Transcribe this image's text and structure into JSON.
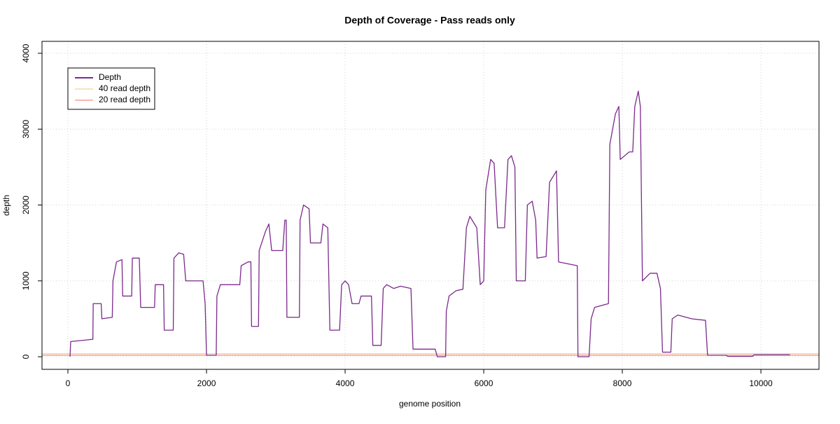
{
  "chart_data": {
    "type": "line",
    "title": "Depth of Coverage - Pass reads only",
    "xlabel": "genome position",
    "ylabel": "depth",
    "xlim": [
      -374,
      10838
    ],
    "ylim": [
      -166,
      4157
    ],
    "xticks": [
      0,
      2000,
      4000,
      6000,
      8000,
      10000
    ],
    "yticks": [
      0,
      1000,
      2000,
      3000,
      4000
    ],
    "grid": true,
    "legend": "top-left",
    "series": [
      {
        "name": "Depth",
        "color": "#7b2a8b",
        "x": [
          30,
          40,
          360,
          365,
          480,
          490,
          640,
          650,
          700,
          780,
          790,
          920,
          930,
          1030,
          1050,
          1250,
          1260,
          1380,
          1390,
          1520,
          1530,
          1600,
          1670,
          1700,
          1950,
          1980,
          2000,
          2140,
          2150,
          2200,
          2480,
          2500,
          2600,
          2640,
          2650,
          2750,
          2760,
          2850,
          2900,
          2940,
          3100,
          3130,
          3150,
          3160,
          3340,
          3350,
          3400,
          3480,
          3500,
          3650,
          3680,
          3750,
          3780,
          3920,
          3950,
          4000,
          4050,
          4100,
          4200,
          4230,
          4380,
          4400,
          4520,
          4550,
          4600,
          4700,
          4800,
          4950,
          4980,
          5300,
          5330,
          5450,
          5460,
          5500,
          5600,
          5700,
          5750,
          5800,
          5900,
          5950,
          6000,
          6030,
          6100,
          6150,
          6200,
          6300,
          6350,
          6400,
          6450,
          6470,
          6600,
          6630,
          6700,
          6750,
          6770,
          6900,
          6950,
          7050,
          7080,
          7350,
          7360,
          7520,
          7550,
          7600,
          7800,
          7820,
          7900,
          7950,
          7970,
          8100,
          8150,
          8180,
          8230,
          8260,
          8290,
          8400,
          8500,
          8550,
          8580,
          8700,
          8720,
          8800,
          9000,
          9200,
          9230,
          9500,
          9520,
          9880,
          9900,
          10420
        ],
        "values": [
          0,
          200,
          230,
          700,
          700,
          500,
          520,
          1000,
          1250,
          1280,
          800,
          800,
          1300,
          1300,
          650,
          650,
          950,
          950,
          350,
          350,
          1300,
          1370,
          1350,
          1000,
          1000,
          700,
          20,
          20,
          800,
          950,
          950,
          1200,
          1250,
          1250,
          400,
          400,
          1400,
          1650,
          1750,
          1400,
          1400,
          1800,
          1800,
          520,
          520,
          1800,
          2000,
          1950,
          1500,
          1500,
          1750,
          1700,
          350,
          350,
          950,
          1000,
          950,
          700,
          700,
          800,
          800,
          150,
          150,
          900,
          950,
          900,
          930,
          900,
          100,
          100,
          0,
          0,
          600,
          800,
          870,
          890,
          1700,
          1850,
          1700,
          950,
          1000,
          2200,
          2600,
          2550,
          1700,
          1700,
          2600,
          2650,
          2500,
          1000,
          1000,
          2000,
          2050,
          1800,
          1300,
          1320,
          2300,
          2450,
          1250,
          1200,
          0,
          0,
          500,
          650,
          700,
          2800,
          3200,
          3300,
          2600,
          2700,
          2700,
          3300,
          3500,
          3300,
          1000,
          1100,
          1100,
          900,
          60,
          60,
          500,
          550,
          500,
          480,
          20,
          20,
          5,
          5,
          25,
          25
        ]
      }
    ],
    "hlines": [
      {
        "name": "40 read depth",
        "color": "#f0c47c",
        "value": 40
      },
      {
        "name": "20 read depth",
        "color": "#f27058",
        "value": 20
      }
    ]
  }
}
